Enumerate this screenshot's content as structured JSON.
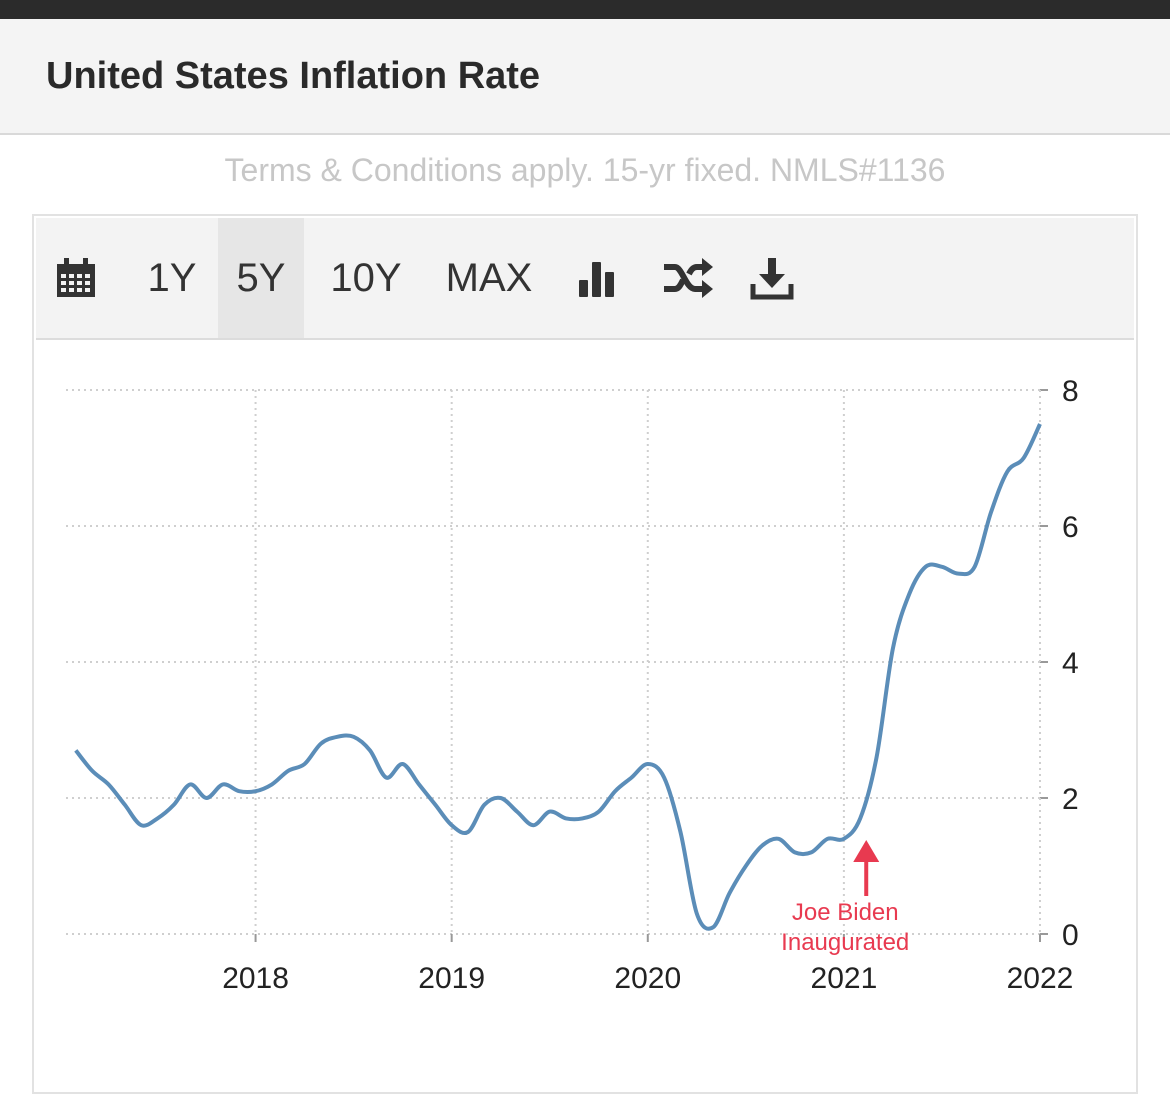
{
  "page": {
    "title": "United States Inflation Rate",
    "terms": "Terms & Conditions apply. 15-yr fixed. NMLS#1136"
  },
  "toolbar": {
    "calendar_icon": "calendar-icon",
    "ranges": [
      {
        "label": "1Y",
        "active": false
      },
      {
        "label": "5Y",
        "active": true
      },
      {
        "label": "10Y",
        "active": false
      },
      {
        "label": "MAX",
        "active": false
      }
    ],
    "chart_type_icon": "bar-chart-icon",
    "compare_icon": "shuffle-icon",
    "download_icon": "download-icon"
  },
  "colors": {
    "line": "#5b8db8",
    "annotation": "#e83a50",
    "grid": "#cfcfcf"
  },
  "chart_data": {
    "type": "line",
    "title": "",
    "xlabel": "",
    "ylabel": "",
    "x_ticks": [
      "2018",
      "2019",
      "2020",
      "2021",
      "2022"
    ],
    "y_ticks": [
      0,
      2,
      4,
      6,
      8
    ],
    "ylim": [
      0,
      8
    ],
    "xlim": [
      "2017-02",
      "2022-01"
    ],
    "grid": true,
    "y_axis_side": "right",
    "series": [
      {
        "x": [
          "2017-02",
          "2017-03",
          "2017-04",
          "2017-05",
          "2017-06",
          "2017-07",
          "2017-08",
          "2017-09",
          "2017-10",
          "2017-11",
          "2017-12",
          "2018-01",
          "2018-02",
          "2018-03",
          "2018-04",
          "2018-05",
          "2018-06",
          "2018-07",
          "2018-08",
          "2018-09",
          "2018-10",
          "2018-11",
          "2018-12",
          "2019-01",
          "2019-02",
          "2019-03",
          "2019-04",
          "2019-05",
          "2019-06",
          "2019-07",
          "2019-08",
          "2019-09",
          "2019-10",
          "2019-11",
          "2019-12",
          "2020-01",
          "2020-02",
          "2020-03",
          "2020-04",
          "2020-05",
          "2020-06",
          "2020-07",
          "2020-08",
          "2020-09",
          "2020-10",
          "2020-11",
          "2020-12",
          "2021-01",
          "2021-02",
          "2021-03",
          "2021-04",
          "2021-05",
          "2021-06",
          "2021-07",
          "2021-08",
          "2021-09",
          "2021-10",
          "2021-11",
          "2021-12",
          "2022-01"
        ],
        "values": [
          2.7,
          2.4,
          2.2,
          1.9,
          1.6,
          1.7,
          1.9,
          2.2,
          2.0,
          2.2,
          2.1,
          2.1,
          2.2,
          2.4,
          2.5,
          2.8,
          2.9,
          2.9,
          2.7,
          2.3,
          2.5,
          2.2,
          1.9,
          1.6,
          1.5,
          1.9,
          2.0,
          1.8,
          1.6,
          1.8,
          1.7,
          1.7,
          1.8,
          2.1,
          2.3,
          2.5,
          2.3,
          1.5,
          0.3,
          0.1,
          0.6,
          1.0,
          1.3,
          1.4,
          1.2,
          1.2,
          1.4,
          1.4,
          1.7,
          2.6,
          4.2,
          5.0,
          5.4,
          5.4,
          5.3,
          5.4,
          6.2,
          6.8,
          7.0,
          7.5
        ]
      }
    ],
    "annotations": [
      {
        "x": "2021-02",
        "y": 1.5,
        "text_line1": "Joe Biden",
        "text_line2": "Inaugurated",
        "marker": "arrow-up"
      }
    ]
  }
}
